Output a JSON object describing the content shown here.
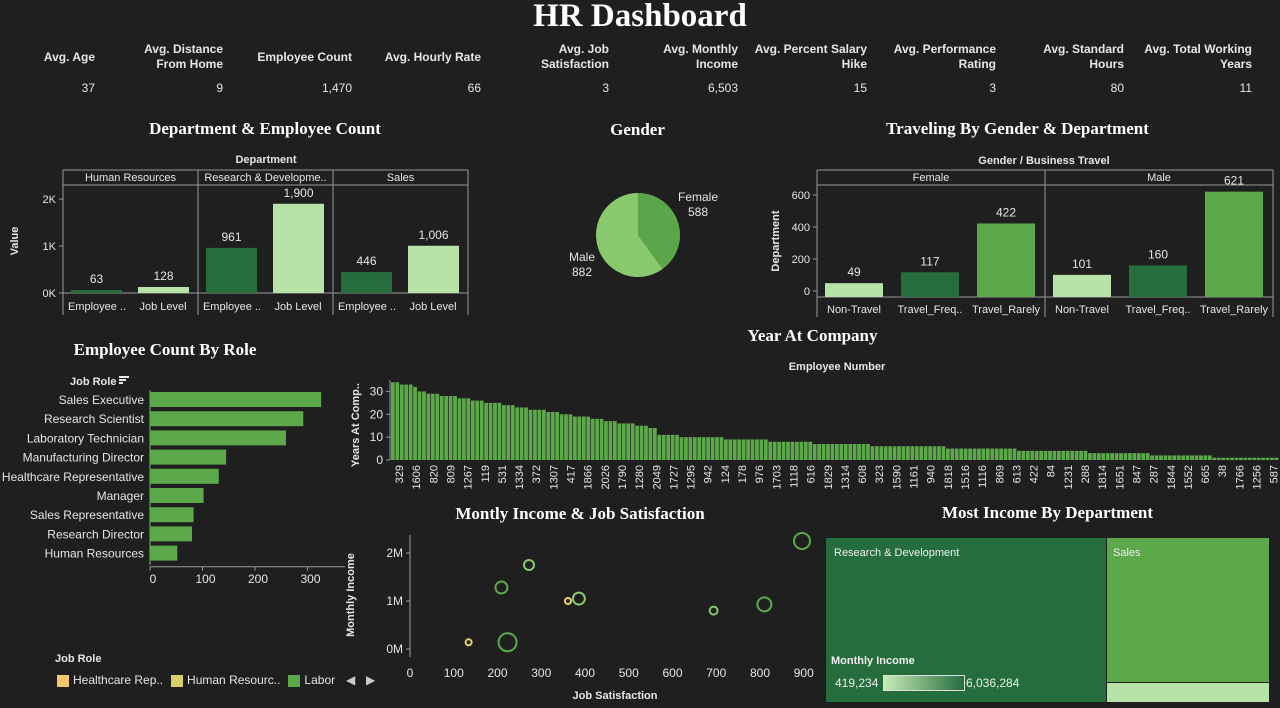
{
  "title": "HR Dashboard",
  "kpis": [
    {
      "label": "Avg. Age",
      "value": "37"
    },
    {
      "label": "Avg. Distance From Home",
      "value": "9"
    },
    {
      "label": "Employee Count",
      "value": "1,470"
    },
    {
      "label": "Avg. Hourly Rate",
      "value": "66"
    },
    {
      "label": "Avg. Job Satisfaction",
      "value": "3"
    },
    {
      "label": "Avg. Monthly Income",
      "value": "6,503"
    },
    {
      "label": "Avg. Percent Salary Hike",
      "value": "15"
    },
    {
      "label": "Avg. Performance Rating",
      "value": "3"
    },
    {
      "label": "Avg. Standard Hours",
      "value": "80"
    },
    {
      "label": "Avg. Total Working Years",
      "value": "11"
    }
  ],
  "colors": {
    "dark": "#256d3c",
    "light": "#b7e2a8",
    "mid": "#5ca84a",
    "pie_female": "#5ba64a",
    "pie_male": "#87c96c",
    "bg": "#1f1f1f"
  },
  "dept_chart": {
    "title": "Department & Employee Count",
    "header": "Department",
    "ylabel": "Value",
    "yticks": [
      "2K",
      "1K",
      "0K"
    ],
    "groups": [
      {
        "name": "Human Resources",
        "bars": [
          {
            "label": "Employee ..",
            "value": 63
          },
          {
            "label": "Job Level",
            "value": 128
          }
        ]
      },
      {
        "name": "Research & Developme..",
        "bars": [
          {
            "label": "Employee ..",
            "value": 961
          },
          {
            "label": "Job Level",
            "value": 1900
          }
        ]
      },
      {
        "name": "Sales",
        "bars": [
          {
            "label": "Employee ..",
            "value": 446
          },
          {
            "label": "Job Level",
            "value": 1006
          }
        ]
      }
    ],
    "value_labels": [
      [
        "63",
        "128"
      ],
      [
        "961",
        "1,900"
      ],
      [
        "446",
        "1,006"
      ]
    ]
  },
  "gender": {
    "title": "Gender",
    "female_label": "Female",
    "female_value": "588",
    "male_label": "Male",
    "male_value": "882",
    "female": 588,
    "male": 882
  },
  "travel": {
    "title": "Traveling By Gender & Department",
    "header": "Gender / Business Travel",
    "ylabel": "Department",
    "yticks": [
      "600",
      "400",
      "200",
      "0"
    ],
    "groups": [
      {
        "name": "Female",
        "bars": [
          {
            "label": "Non-Travel",
            "value": 49,
            "text": "49"
          },
          {
            "label": "Travel_Freq..",
            "value": 117,
            "text": "117"
          },
          {
            "label": "Travel_Rarely",
            "value": 422,
            "text": "422"
          }
        ]
      },
      {
        "name": "Male",
        "bars": [
          {
            "label": "Non-Travel",
            "value": 101,
            "text": "101"
          },
          {
            "label": "Travel_Freq..",
            "value": 160,
            "text": "160"
          },
          {
            "label": "Travel_Rarely",
            "value": 621,
            "text": "621"
          }
        ]
      }
    ]
  },
  "roles": {
    "title": "Employee Count By Role",
    "header": "Job Role",
    "xticks": [
      "0",
      "100",
      "200",
      "300"
    ],
    "items": [
      {
        "label": "Sales Executive",
        "value": 326
      },
      {
        "label": "Research Scientist",
        "value": 292
      },
      {
        "label": "Laboratory Technician",
        "value": 259
      },
      {
        "label": "Manufacturing Director",
        "value": 145
      },
      {
        "label": "Healthcare Representative",
        "value": 131
      },
      {
        "label": "Manager",
        "value": 102
      },
      {
        "label": "Sales Representative",
        "value": 83
      },
      {
        "label": "Research Director",
        "value": 80
      },
      {
        "label": "Human Resources",
        "value": 52
      }
    ]
  },
  "years": {
    "title": "Year At Company",
    "header": "Employee Number",
    "ylabel": "Years At Comp..",
    "yticks": [
      "30",
      "20",
      "10",
      "0"
    ],
    "xlabels": [
      "329",
      "1606",
      "820",
      "809",
      "1267",
      "119",
      "531",
      "1334",
      "372",
      "1307",
      "417",
      "1866",
      "2026",
      "1790",
      "1280",
      "2049",
      "1727",
      "1295",
      "942",
      "124",
      "178",
      "976",
      "1703",
      "1118",
      "616",
      "1829",
      "1314",
      "608",
      "323",
      "1590",
      "1161",
      "940",
      "1818",
      "1516",
      "1116",
      "869",
      "613",
      "422",
      "84",
      "1231",
      "288",
      "1814",
      "1651",
      "847",
      "287",
      "1844",
      "1552",
      "665",
      "38",
      "1766",
      "1256",
      "587"
    ]
  },
  "scatter": {
    "title": "Montly Income & Job Satisfaction",
    "xlabel": "Job Satisfaction",
    "ylabel": "Monthly Income",
    "yticks": [
      "2M",
      "1M",
      "0M"
    ],
    "xticks": [
      "0",
      "100",
      "200",
      "300",
      "400",
      "500",
      "600",
      "700",
      "800",
      "900"
    ],
    "points": [
      {
        "x": 896,
        "y": 2.25,
        "r": 8,
        "c": "#5ca84a"
      },
      {
        "x": 272,
        "y": 1.75,
        "r": 5,
        "c": "#87c96c"
      },
      {
        "x": 209,
        "y": 1.28,
        "r": 6,
        "c": "#5ca84a"
      },
      {
        "x": 386,
        "y": 1.05,
        "r": 6,
        "c": "#87c96c"
      },
      {
        "x": 361,
        "y": 1.0,
        "r": 3,
        "c": "#e8d06a"
      },
      {
        "x": 810,
        "y": 0.93,
        "r": 7,
        "c": "#5ca84a"
      },
      {
        "x": 694,
        "y": 0.8,
        "r": 4,
        "c": "#87c96c"
      },
      {
        "x": 134,
        "y": 0.14,
        "r": 3,
        "c": "#e8d06a"
      },
      {
        "x": 223,
        "y": 0.14,
        "r": 9,
        "c": "#5ca84a"
      }
    ]
  },
  "legend": {
    "title": "Job Role",
    "items": [
      {
        "label": "Healthcare Rep..",
        "color": "#f2c96a"
      },
      {
        "label": "Human Resourc..",
        "color": "#d8cf69"
      },
      {
        "label": "Labor",
        "color": "#5ca84a"
      }
    ]
  },
  "treemap": {
    "title": "Most Income By Department",
    "rd_label": "Research & Development",
    "sales_label": "Sales",
    "legend_title": "Monthly Income",
    "min": "419,234",
    "max": "6,036,284"
  }
}
